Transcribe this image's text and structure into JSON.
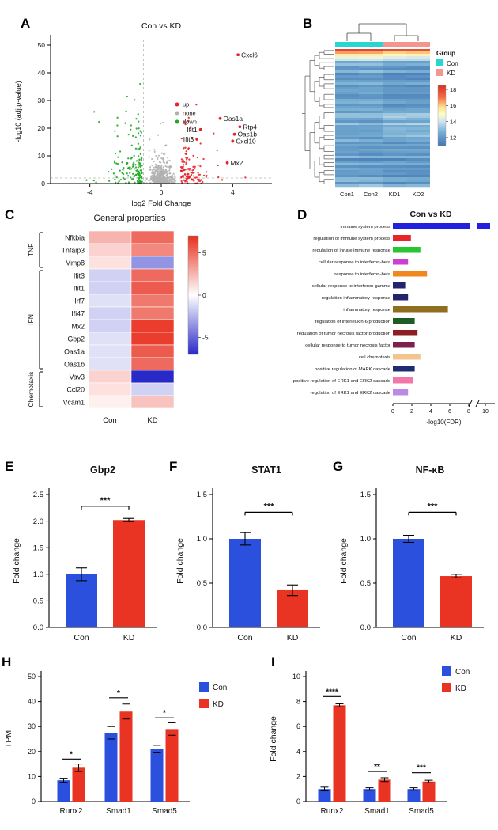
{
  "panel_labels": [
    "A",
    "B",
    "C",
    "D",
    "E",
    "F",
    "G",
    "H",
    "I"
  ],
  "colors": {
    "up_red": "#e8232a",
    "none_gray": "#b0b0b0",
    "down_green": "#1fa824",
    "bar_blue": "#2b50dd",
    "bar_red": "#e93323",
    "group_con": "#26d7d1",
    "group_kd": "#f2968f"
  },
  "chart_data": [
    {
      "panel": "A",
      "type": "scatter",
      "kind": "volcano",
      "title": "Con vs KD",
      "xlabel": "log2 Fold Change",
      "ylabel": "-log10 (adj.p-value)",
      "xlim": [
        -6.2,
        6.2
      ],
      "ylim": [
        0,
        52
      ],
      "xticks": [
        -4,
        0,
        4
      ],
      "yticks": [
        0,
        10,
        20,
        30,
        40,
        50
      ],
      "vlines": [
        -1,
        1
      ],
      "hline": 2,
      "legend": [
        {
          "label": "up",
          "color": "#e8232a"
        },
        {
          "label": "none",
          "color": "#b0b0b0"
        },
        {
          "label": "down",
          "color": "#1fa824"
        }
      ],
      "labeled_points": [
        {
          "gene": "Cxcl6",
          "x": 4.3,
          "y": 46.5,
          "side": "r"
        },
        {
          "gene": "Oas1a",
          "x": 3.3,
          "y": 23.5,
          "side": "r"
        },
        {
          "gene": "Rtp4",
          "x": 4.4,
          "y": 20.5,
          "side": "r"
        },
        {
          "gene": "Ifit1",
          "x": 2.2,
          "y": 19.5,
          "side": "l"
        },
        {
          "gene": "Oas1b",
          "x": 4.1,
          "y": 17.8,
          "side": "r"
        },
        {
          "gene": "Ifit3",
          "x": 2.0,
          "y": 16.0,
          "side": "l"
        },
        {
          "gene": "Cxcl10",
          "x": 4.0,
          "y": 15.3,
          "side": "r"
        },
        {
          "gene": "Mx2",
          "x": 3.7,
          "y": 7.5,
          "side": "r"
        }
      ],
      "cloud": {
        "seed": 7,
        "n_none": 420,
        "n_down": 150,
        "n_up": 120
      }
    },
    {
      "panel": "B",
      "type": "heatmap",
      "kind": "clustered",
      "columns": [
        "Con1",
        "Con2",
        "KD1",
        "KD2"
      ],
      "col_groups": [
        "Con",
        "Con",
        "KD",
        "KD"
      ],
      "legend_title": "Group",
      "legend": [
        {
          "label": "Con",
          "color": "#26d7d1"
        },
        {
          "label": "KD",
          "color": "#f2968f"
        }
      ],
      "scale_ticks": [
        18,
        16,
        14,
        12
      ],
      "scale_range": [
        11,
        18.5
      ],
      "n_rows": 58,
      "seed": 11
    },
    {
      "panel": "C",
      "type": "heatmap",
      "kind": "matrix",
      "title": "General properties",
      "columns": [
        "Con",
        "KD"
      ],
      "rows": [
        "Nfkbia",
        "Tnfaip3",
        "Mmp8",
        "Ifit3",
        "Ifit1",
        "Irf7",
        "Ifi47",
        "Mx2",
        "Gbp2",
        "Oas1a",
        "Oas1b",
        "Vav3",
        "Ccl20",
        "Vcam1"
      ],
      "row_groups": [
        {
          "name": "TNF",
          "from": 0,
          "to": 2
        },
        {
          "name": "IFN",
          "from": 3,
          "to": 10
        },
        {
          "name": "Chemotaxis",
          "from": 11,
          "to": 13
        }
      ],
      "values": [
        [
          2.5,
          5
        ],
        [
          1.5,
          4
        ],
        [
          1,
          -3.5
        ],
        [
          -1.5,
          5
        ],
        [
          -1.5,
          5.5
        ],
        [
          -1,
          4.5
        ],
        [
          -1.5,
          4.5
        ],
        [
          -1.5,
          6.5
        ],
        [
          -1,
          6.5
        ],
        [
          -1,
          5.5
        ],
        [
          -1,
          5
        ],
        [
          1.5,
          -7
        ],
        [
          1,
          -1.5
        ],
        [
          0.5,
          2
        ]
      ],
      "scale_ticks": [
        5,
        0,
        -5
      ],
      "scale_range": [
        -7,
        7
      ]
    },
    {
      "panel": "D",
      "type": "bar",
      "kind": "hbar",
      "title": "Con vs KD",
      "xlabel": "-log10(FDR)",
      "xticks": [
        0,
        2,
        4,
        6,
        8,
        10
      ],
      "axis_break": true,
      "terms": [
        {
          "label": "immune system process",
          "value": 11.2,
          "color": "#2121dd"
        },
        {
          "label": "regulation of immune system process",
          "value": 1.9,
          "color": "#e8232a"
        },
        {
          "label": "regulation of innate immune response",
          "value": 2.9,
          "color": "#27c52f"
        },
        {
          "label": "cellular response to interferon-beta",
          "value": 1.6,
          "color": "#cc3fd0"
        },
        {
          "label": "response to interferon-beta",
          "value": 3.6,
          "color": "#f0881e"
        },
        {
          "label": "cellular response to interferon-gamma",
          "value": 1.3,
          "color": "#23236e"
        },
        {
          "label": "regulation inflammatory response",
          "value": 1.6,
          "color": "#23236e"
        },
        {
          "label": "inflammatory response",
          "value": 5.8,
          "color": "#8f6f1f"
        },
        {
          "label": "regulation of interleukin-6 production",
          "value": 2.3,
          "color": "#1d5c24"
        },
        {
          "label": "regulation of tumor necrosis factor production",
          "value": 2.6,
          "color": "#8c1f24"
        },
        {
          "label": "cellular response to tumor necrosis factor",
          "value": 2.3,
          "color": "#7c2050"
        },
        {
          "label": "cell chemotaxis",
          "value": 2.9,
          "color": "#f3c490"
        },
        {
          "label": "positive regulation of MAPK cascade",
          "value": 2.3,
          "color": "#1f2d70"
        },
        {
          "label": "positive regulation of ERK1 and ERK2 cascade",
          "value": 2.1,
          "color": "#f276a8"
        },
        {
          "label": "regulation of ERK1 and ERK2 cascade",
          "value": 1.6,
          "color": "#bc8ae6"
        }
      ]
    },
    {
      "panel": "E",
      "type": "bar",
      "kind": "twobar",
      "title": "Gbp2",
      "ylabel": "Fold change",
      "ylim": [
        0,
        2.5
      ],
      "yticks": [
        "0.0",
        "0.5",
        "1.0",
        "1.5",
        "2.0",
        "2.5"
      ],
      "bars": [
        {
          "label": "Con",
          "value": 1.0,
          "err": 0.12,
          "color": "#2b50dd"
        },
        {
          "label": "KD",
          "value": 2.02,
          "err": 0.03,
          "color": "#e93323"
        }
      ],
      "sig": "***",
      "sig_y": 2.28
    },
    {
      "panel": "F",
      "type": "bar",
      "kind": "twobar",
      "title": "STAT1",
      "ylabel": "Fold change",
      "ylim": [
        0,
        1.5
      ],
      "yticks": [
        "0.0",
        "0.5",
        "1.0",
        "1.5"
      ],
      "bars": [
        {
          "label": "Con",
          "value": 1.0,
          "err": 0.07,
          "color": "#2b50dd"
        },
        {
          "label": "KD",
          "value": 0.42,
          "err": 0.06,
          "color": "#e93323"
        }
      ],
      "sig": "***",
      "sig_y": 1.3
    },
    {
      "panel": "G",
      "type": "bar",
      "kind": "twobar",
      "title": "NF-κB",
      "ylabel": "Fold change",
      "ylim": [
        0,
        1.5
      ],
      "yticks": [
        "0.0",
        "0.5",
        "1.0",
        "1.5"
      ],
      "bars": [
        {
          "label": "Con",
          "value": 1.0,
          "err": 0.04,
          "color": "#2b50dd"
        },
        {
          "label": "KD",
          "value": 0.58,
          "err": 0.02,
          "color": "#e93323"
        }
      ],
      "sig": "***",
      "sig_y": 1.3
    },
    {
      "panel": "H",
      "type": "bar",
      "kind": "grouped",
      "ylabel": "TPM",
      "ylim": [
        0,
        50
      ],
      "yticks": [
        0,
        10,
        20,
        30,
        40,
        50
      ],
      "categories": [
        "Runx2",
        "Smad1",
        "Smad5"
      ],
      "series": [
        {
          "name": "Con",
          "color": "#2b50dd",
          "values": [
            8.5,
            27.5,
            21
          ],
          "errors": [
            0.8,
            2.5,
            1.5
          ]
        },
        {
          "name": "KD",
          "color": "#e93323",
          "values": [
            13.5,
            36,
            29
          ],
          "errors": [
            1.5,
            3,
            2.5
          ]
        }
      ],
      "sig": [
        {
          "label": "*",
          "y": 17
        },
        {
          "label": "*",
          "y": 41.5
        },
        {
          "label": "*",
          "y": 33.5
        }
      ]
    },
    {
      "panel": "I",
      "type": "bar",
      "kind": "grouped",
      "ylabel": "Fold change",
      "ylim": [
        0,
        10
      ],
      "yticks": [
        0,
        2,
        4,
        6,
        8,
        10
      ],
      "categories": [
        "Runx2",
        "Smad1",
        "Smad5"
      ],
      "series": [
        {
          "name": "Con",
          "color": "#2b50dd",
          "values": [
            1.0,
            1.0,
            1.0
          ],
          "errors": [
            0.15,
            0.1,
            0.1
          ]
        },
        {
          "name": "KD",
          "color": "#e93323",
          "values": [
            7.7,
            1.75,
            1.6
          ],
          "errors": [
            0.12,
            0.15,
            0.1
          ]
        }
      ],
      "sig": [
        {
          "label": "****",
          "y": 8.4
        },
        {
          "label": "**",
          "y": 2.4
        },
        {
          "label": "***",
          "y": 2.3
        }
      ]
    }
  ]
}
